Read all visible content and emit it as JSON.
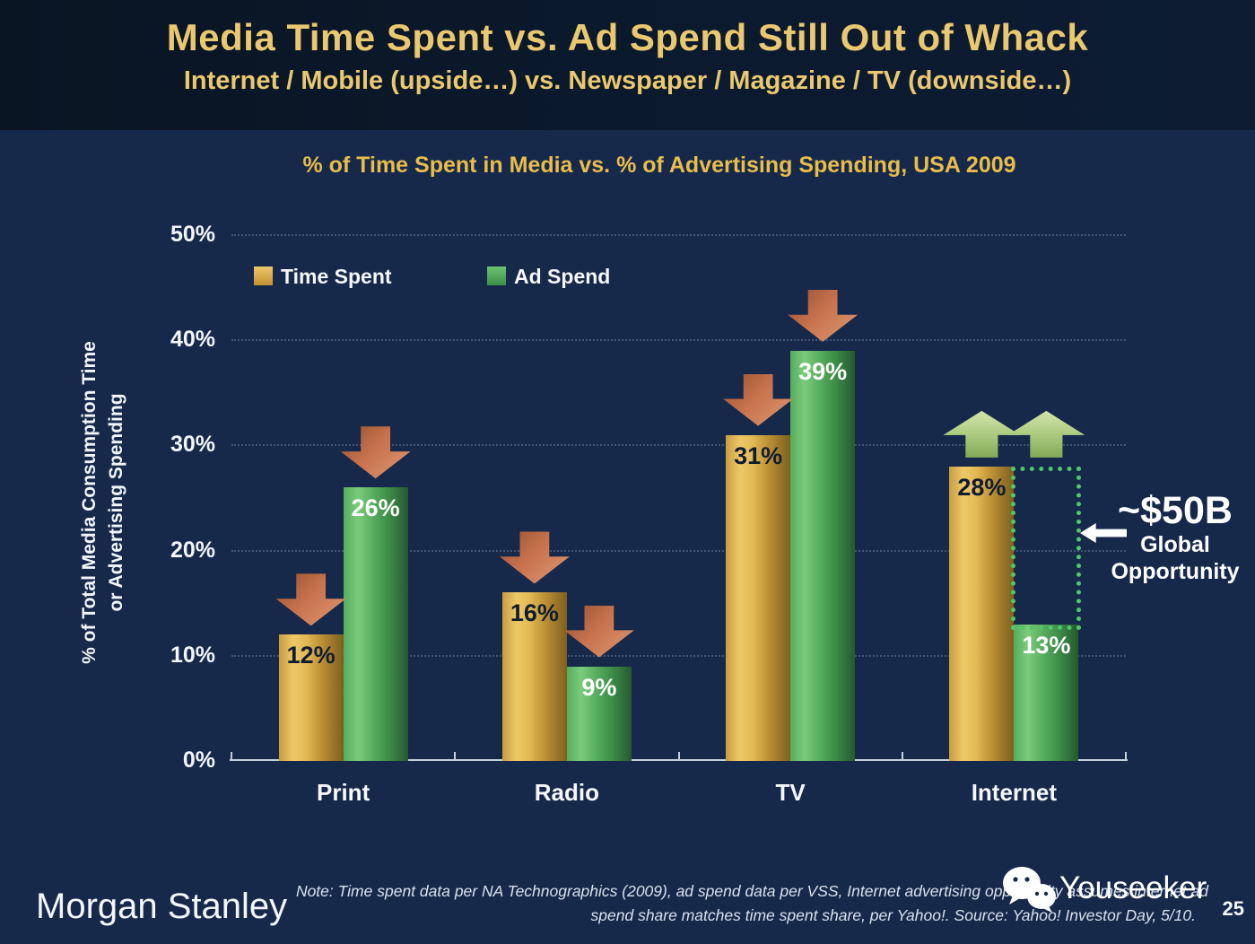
{
  "slide": {
    "title": "Media Time Spent vs. Ad Spend Still Out of Whack",
    "subtitle": "Internet / Mobile (upside…) vs. Newspaper / Magazine / TV (downside…)",
    "page_number": "25"
  },
  "footer": {
    "brand": "Morgan Stanley",
    "note_line1": "Note: Time spent data per NA Technographics (2009), ad spend data per VSS, Internet advertising opportunity assumes internet ad",
    "note_line2": "spend share matches time spent share, per Yahoo!. Source: Yahoo! Investor Day, 5/10.",
    "watermark": "Youseeker"
  },
  "chart_data": {
    "type": "bar",
    "title": "% of Time Spent in Media vs. % of Advertising Spending, USA 2009",
    "ylabel_line1": "% of Total Media Consumption Time",
    "ylabel_line2": "or Advertising Spending",
    "categories": [
      "Print",
      "Radio",
      "TV",
      "Internet"
    ],
    "series": [
      {
        "name": "Time Spent",
        "key": "gold",
        "values": [
          12,
          16,
          31,
          28
        ]
      },
      {
        "name": "Ad Spend",
        "key": "green",
        "values": [
          26,
          9,
          39,
          13
        ]
      }
    ],
    "value_suffix": "%",
    "ylim": [
      0,
      50
    ],
    "yticks": [
      "0%",
      "10%",
      "20%",
      "30%",
      "40%",
      "50%"
    ],
    "grid": "dotted-horizontal",
    "legend_position": "top-left-inside",
    "trend_arrows": {
      "Print": "down",
      "Radio": "down",
      "TV": "down",
      "Internet": "up"
    },
    "annotation": {
      "category": "Internet",
      "value_line": "~$50B",
      "label_line1": "Global",
      "label_line2": "Opportunity"
    },
    "colors": {
      "time_spent_bar": "#d9ab4a",
      "ad_spend_bar": "#4da455",
      "down_arrow": "#c9744e",
      "up_arrow": "#a9c87c",
      "title_gold": "#e9bd4a",
      "headline_gold": "#eac86f",
      "background": "#17294b",
      "title_band": "#0b1a2e",
      "opportunity_dotted": "#4fc76a"
    }
  }
}
